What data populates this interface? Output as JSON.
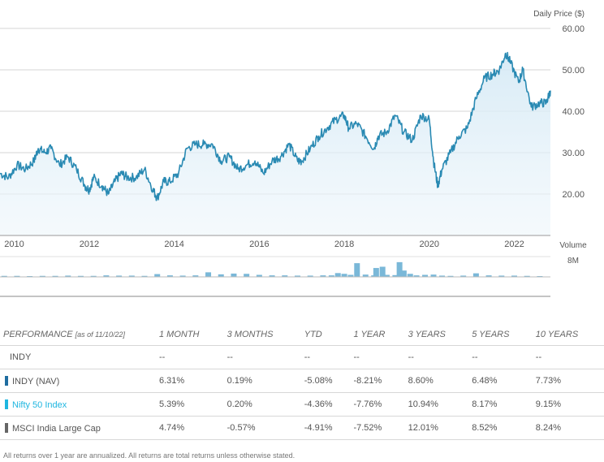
{
  "chart_data": {
    "type": "line",
    "ylabel": "Daily Price ($)",
    "ylim": [
      10,
      60
    ],
    "yticks": [
      "60.00",
      "50.00",
      "40.00",
      "30.00",
      "20.00"
    ],
    "ytick_values": [
      60,
      50,
      40,
      30,
      20
    ],
    "x_range": [
      2009.9,
      2022.85
    ],
    "xtick_labels": [
      "2010",
      "2012",
      "2014",
      "2016",
      "2018",
      "2020",
      "2022"
    ],
    "xtick_values": [
      2010,
      2012,
      2014,
      2016,
      2018,
      2020,
      2022
    ],
    "series": [
      {
        "name": "INDY Daily Price",
        "color": "#2a8ab3",
        "x": [
          2009.9,
          2010.1,
          2010.3,
          2010.5,
          2010.7,
          2010.8,
          2010.95,
          2011.1,
          2011.3,
          2011.5,
          2011.7,
          2011.9,
          2012.0,
          2012.1,
          2012.3,
          2012.45,
          2012.6,
          2012.75,
          2012.9,
          2013.1,
          2013.3,
          2013.5,
          2013.6,
          2013.75,
          2013.9,
          2014.1,
          2014.3,
          2014.5,
          2014.7,
          2014.9,
          2015.1,
          2015.3,
          2015.5,
          2015.7,
          2015.9,
          2016.1,
          2016.3,
          2016.5,
          2016.7,
          2016.9,
          2017.0,
          2017.2,
          2017.4,
          2017.6,
          2017.8,
          2018.0,
          2018.1,
          2018.3,
          2018.5,
          2018.7,
          2018.8,
          2019.0,
          2019.2,
          2019.4,
          2019.6,
          2019.8,
          2020.0,
          2020.1,
          2020.2,
          2020.3,
          2020.5,
          2020.7,
          2020.9,
          2021.1,
          2021.3,
          2021.5,
          2021.65,
          2021.8,
          2021.9,
          2022.1,
          2022.2,
          2022.4,
          2022.6,
          2022.75,
          2022.85
        ],
        "values": [
          25,
          24,
          27,
          26,
          28,
          31,
          30,
          31,
          27,
          29,
          26,
          22,
          21,
          24,
          22,
          20,
          23,
          25,
          24,
          24,
          26,
          21,
          19,
          23,
          23,
          25,
          31,
          32,
          32,
          32,
          28,
          29,
          26,
          27,
          28,
          25,
          28,
          29,
          32,
          28,
          28,
          31,
          34,
          36,
          38,
          39,
          36,
          37,
          34,
          31,
          34,
          35,
          39,
          35,
          33,
          39,
          38,
          28,
          22,
          26,
          30,
          34,
          36,
          43,
          48,
          49,
          50,
          54,
          52,
          47,
          50,
          41,
          42,
          42,
          45
        ]
      }
    ],
    "volume": {
      "label": "Volume",
      "scale_label": "8M",
      "ymax": 8,
      "x": [
        2010.0,
        2010.3,
        2010.6,
        2010.9,
        2011.2,
        2011.5,
        2011.8,
        2012.1,
        2012.4,
        2012.7,
        2013.0,
        2013.3,
        2013.6,
        2013.9,
        2014.2,
        2014.5,
        2014.8,
        2015.1,
        2015.4,
        2015.7,
        2016.0,
        2016.3,
        2016.6,
        2016.9,
        2017.2,
        2017.5,
        2017.7,
        2017.85,
        2018.0,
        2018.15,
        2018.3,
        2018.5,
        2018.7,
        2018.75,
        2018.9,
        2019.0,
        2019.2,
        2019.3,
        2019.4,
        2019.55,
        2019.7,
        2019.9,
        2020.1,
        2020.3,
        2020.5,
        2020.8,
        2021.1,
        2021.4,
        2021.7,
        2022.0,
        2022.3,
        2022.6
      ],
      "values": [
        0.4,
        0.4,
        0.3,
        0.4,
        0.4,
        0.5,
        0.4,
        0.4,
        0.6,
        0.5,
        0.5,
        0.4,
        1.1,
        0.6,
        0.5,
        0.6,
        1.8,
        1.0,
        1.3,
        1.2,
        0.8,
        0.6,
        0.6,
        0.5,
        0.5,
        0.6,
        0.6,
        1.5,
        1.2,
        0.8,
        5.4,
        0.9,
        0.6,
        3.5,
        4.0,
        0.8,
        0.7,
        5.8,
        2.5,
        1.2,
        0.6,
        0.8,
        0.9,
        0.5,
        0.4,
        0.5,
        1.4,
        0.6,
        0.5,
        0.5,
        0.4,
        0.3
      ]
    }
  },
  "performance": {
    "header": {
      "label": "PERFORMANCE",
      "as_of": "[as of 11/10/22]",
      "columns": [
        "1 MONTH",
        "3 MONTHS",
        "YTD",
        "1 YEAR",
        "3 YEARS",
        "5 YEARS",
        "10 YEARS"
      ]
    },
    "rows": [
      {
        "name": "INDY",
        "swatch": "",
        "values": [
          "--",
          "--",
          "--",
          "--",
          "--",
          "--",
          "--"
        ]
      },
      {
        "name": "INDY (NAV)",
        "swatch": "#1f6da0",
        "values": [
          "6.31%",
          "0.19%",
          "-5.08%",
          "-8.21%",
          "8.60%",
          "6.48%",
          "7.73%"
        ]
      },
      {
        "name": "Nifty 50 Index",
        "swatch": "#1eb6e0",
        "values": [
          "5.39%",
          "0.20%",
          "-4.36%",
          "-7.76%",
          "10.94%",
          "8.17%",
          "9.15%"
        ]
      },
      {
        "name": "MSCI India Large Cap",
        "swatch": "#666666",
        "values": [
          "4.74%",
          "-0.57%",
          "-4.91%",
          "-7.52%",
          "12.01%",
          "8.52%",
          "8.24%"
        ]
      }
    ]
  },
  "footnote": "All returns over 1 year are annualized. All returns are total returns unless otherwise stated."
}
